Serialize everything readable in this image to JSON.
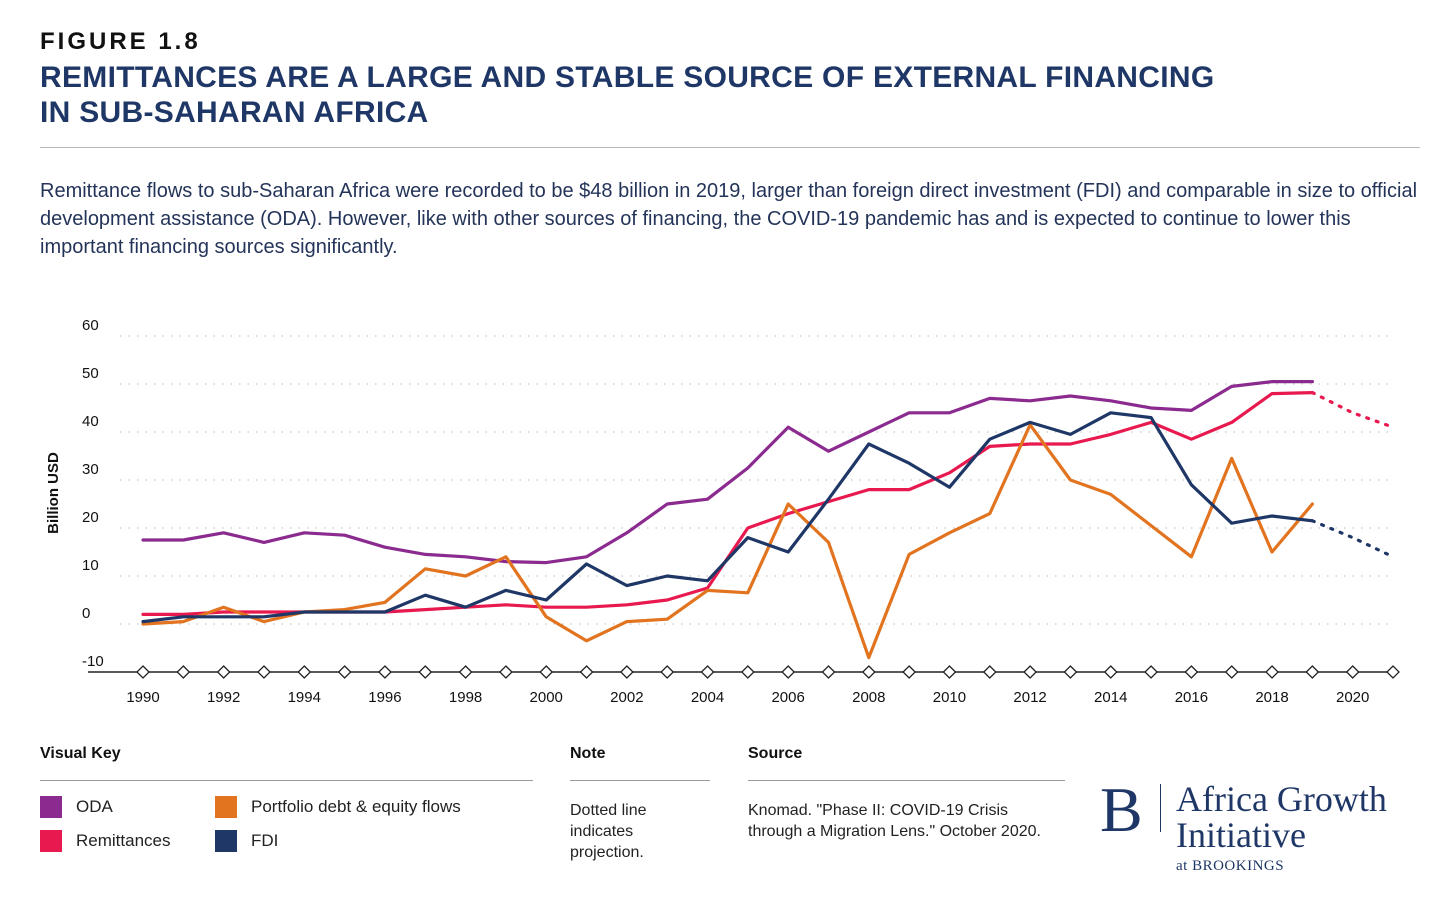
{
  "header": {
    "figure_label": "FIGURE 1.8",
    "title_line1": "REMITTANCES ARE A LARGE AND STABLE SOURCE OF EXTERNAL FINANCING",
    "title_line2": "IN SUB-SAHARAN AFRICA",
    "subtitle": "Remittance flows to sub-Saharan Africa were recorded to be $48 billion in 2019, larger than foreign direct investment (FDI) and comparable in size to official development assistance (ODA). However, like with other sources of financing, the COVID-19 pandemic has and is expected to continue to lower this important financing sources significantly."
  },
  "chart_data": {
    "type": "line",
    "ylabel": "Billion USD",
    "xlabel": "",
    "xlim": [
      1990,
      2021
    ],
    "ylim": [
      -10,
      60
    ],
    "yticks": [
      "60",
      "50",
      "40",
      "30",
      "20",
      "10",
      "0",
      "-10"
    ],
    "xticks": [
      "1990",
      "1992",
      "1994",
      "1996",
      "1998",
      "2000",
      "2002",
      "2004",
      "2006",
      "2008",
      "2010",
      "2012",
      "2014",
      "2016",
      "2018",
      "2020"
    ],
    "grid": "dotted horizontal",
    "x": [
      1990,
      1991,
      1992,
      1993,
      1994,
      1995,
      1996,
      1997,
      1998,
      1999,
      2000,
      2001,
      2002,
      2003,
      2004,
      2005,
      2006,
      2007,
      2008,
      2009,
      2010,
      2011,
      2012,
      2013,
      2014,
      2015,
      2016,
      2017,
      2018,
      2019
    ],
    "series": [
      {
        "name": "ODA",
        "color": "#8b2a8f",
        "values": [
          17.5,
          17.5,
          19,
          17,
          19,
          18.5,
          16,
          14.5,
          14,
          13,
          12.8,
          14,
          19,
          25,
          26,
          32.5,
          41,
          36,
          40,
          44,
          44,
          47,
          46.5,
          47.5,
          46.5,
          45,
          44.5,
          49.5,
          50.5,
          50.5
        ],
        "projection": []
      },
      {
        "name": "Remittances",
        "color": "#e8194f",
        "values": [
          2,
          2,
          2.5,
          2.5,
          2.5,
          2.5,
          2.5,
          3,
          3.5,
          4,
          3.5,
          3.5,
          4,
          5,
          7.5,
          20,
          23,
          25.5,
          28,
          28,
          31.5,
          37,
          37.5,
          37.5,
          39.5,
          42,
          38.5,
          42,
          48,
          48.2
        ],
        "projection": [
          [
            2019,
            48.2
          ],
          [
            2020,
            44
          ],
          [
            2021,
            41
          ]
        ]
      },
      {
        "name": "Portfolio debt & equity flows",
        "color": "#e2731f",
        "values": [
          0,
          0.5,
          3.5,
          0.5,
          2.5,
          3,
          4.5,
          11.5,
          10,
          14,
          1.5,
          -3.5,
          0.5,
          1,
          7,
          6.5,
          25,
          17,
          -7,
          14.5,
          19,
          23,
          41.5,
          30,
          27,
          20.5,
          14,
          34.5,
          15,
          25
        ],
        "projection": []
      },
      {
        "name": "FDI",
        "color": "#1f3766",
        "values": [
          0.5,
          1.5,
          1.5,
          1.5,
          2.5,
          2.5,
          2.5,
          6,
          3.5,
          7,
          5,
          12.5,
          8,
          10,
          9,
          18,
          15,
          26,
          37.5,
          33.5,
          28.5,
          38.5,
          42,
          39.5,
          44,
          43,
          29,
          21,
          22.5,
          21.5
        ],
        "projection": [
          [
            2019,
            21.5
          ],
          [
            2020,
            18
          ],
          [
            2021,
            14
          ]
        ]
      }
    ]
  },
  "legend": {
    "heading": "Visual Key",
    "items": [
      {
        "label": "ODA",
        "color": "#8b2a8f"
      },
      {
        "label": "Remittances",
        "color": "#e8194f"
      },
      {
        "label": "Portfolio debt & equity flows",
        "color": "#e2731f"
      },
      {
        "label": "FDI",
        "color": "#1f3766"
      }
    ]
  },
  "note": {
    "heading": "Note",
    "line1": "Dotted line",
    "line2": "indicates",
    "line3": "projection."
  },
  "source": {
    "heading": "Source",
    "line1": "Knomad. \"Phase II: COVID-19 Crisis",
    "line2": "through a Migration Lens.\" October 2020."
  },
  "logo": {
    "mark": "B",
    "line1": "Africa Growth",
    "line2": "Initiative",
    "line3": "at BROOKINGS"
  }
}
